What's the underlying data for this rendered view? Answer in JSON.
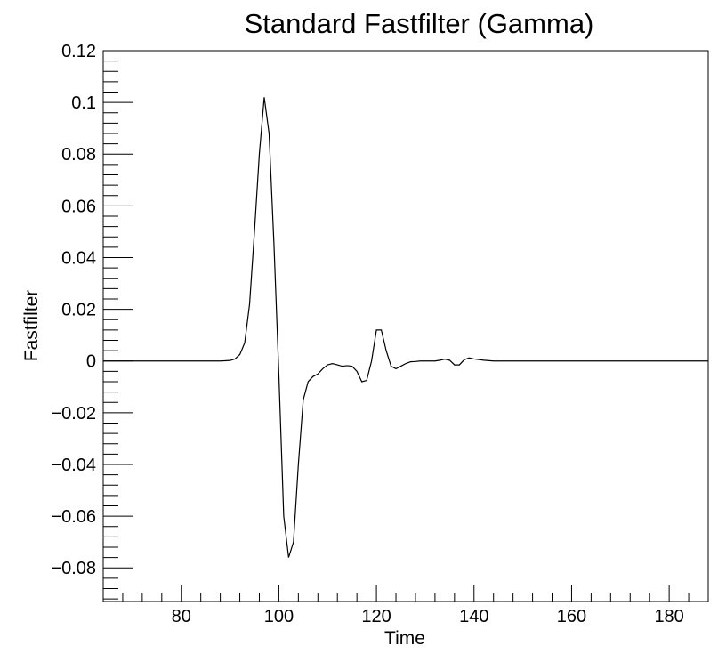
{
  "chart_data": {
    "type": "line",
    "title": "Standard Fastfilter (Gamma)",
    "xlabel": "Time",
    "ylabel": "Fastfilter",
    "xlim": [
      64,
      188
    ],
    "ylim": [
      -0.093,
      0.12
    ],
    "x_ticks": [
      {
        "value": 80,
        "label": "80"
      },
      {
        "value": 100,
        "label": "100"
      },
      {
        "value": 120,
        "label": "120"
      },
      {
        "value": 140,
        "label": "140"
      },
      {
        "value": 160,
        "label": "160"
      },
      {
        "value": 180,
        "label": "180"
      }
    ],
    "y_ticks": [
      {
        "value": 0.12,
        "label": "0.12"
      },
      {
        "value": 0.1,
        "label": "0.1"
      },
      {
        "value": 0.08,
        "label": "0.08"
      },
      {
        "value": 0.06,
        "label": "0.06"
      },
      {
        "value": 0.04,
        "label": "0.04"
      },
      {
        "value": 0.02,
        "label": "0.02"
      },
      {
        "value": 0,
        "label": "0"
      },
      {
        "value": -0.02,
        "label": "−0.02"
      },
      {
        "value": -0.04,
        "label": "−0.04"
      },
      {
        "value": -0.06,
        "label": "−0.06"
      },
      {
        "value": -0.08,
        "label": "−0.08"
      }
    ],
    "grid": false,
    "line_color": "#000000",
    "series": [
      {
        "x": [
          64,
          70,
          80,
          88,
          90,
          91,
          92,
          93,
          94,
          95,
          96,
          97,
          98,
          99,
          100,
          101,
          102,
          103,
          104,
          105,
          106,
          107,
          108,
          109,
          110,
          111,
          112,
          113,
          114,
          115,
          116,
          117,
          118,
          119,
          120,
          121,
          122,
          123,
          124,
          125,
          126,
          127,
          128,
          129,
          130,
          131,
          132,
          133,
          134,
          135,
          136,
          137,
          138,
          139,
          140,
          142,
          144,
          146,
          148,
          150,
          152,
          154,
          155,
          156,
          158,
          160,
          162,
          164,
          166,
          170,
          175,
          180,
          185,
          188
        ],
        "y": [
          0,
          0,
          0,
          0,
          0.0002,
          0.0008,
          0.0025,
          0.007,
          0.022,
          0.05,
          0.08,
          0.102,
          0.088,
          0.045,
          -0.005,
          -0.06,
          -0.076,
          -0.07,
          -0.04,
          -0.015,
          -0.008,
          -0.006,
          -0.005,
          -0.003,
          -0.0015,
          -0.001,
          -0.0015,
          -0.002,
          -0.0018,
          -0.002,
          -0.004,
          -0.008,
          -0.0075,
          0.0,
          0.012,
          0.012,
          0.004,
          -0.002,
          -0.003,
          -0.002,
          -0.001,
          -0.0003,
          -0.0002,
          0,
          0,
          0,
          0,
          0.0003,
          0.0007,
          0.0003,
          -0.0015,
          -0.0015,
          0.0005,
          0.0012,
          0.0008,
          0.0003,
          0,
          0,
          0,
          0,
          0,
          0,
          0,
          0,
          0,
          0,
          0,
          0,
          0,
          0,
          0,
          0,
          0,
          0
        ]
      }
    ]
  }
}
